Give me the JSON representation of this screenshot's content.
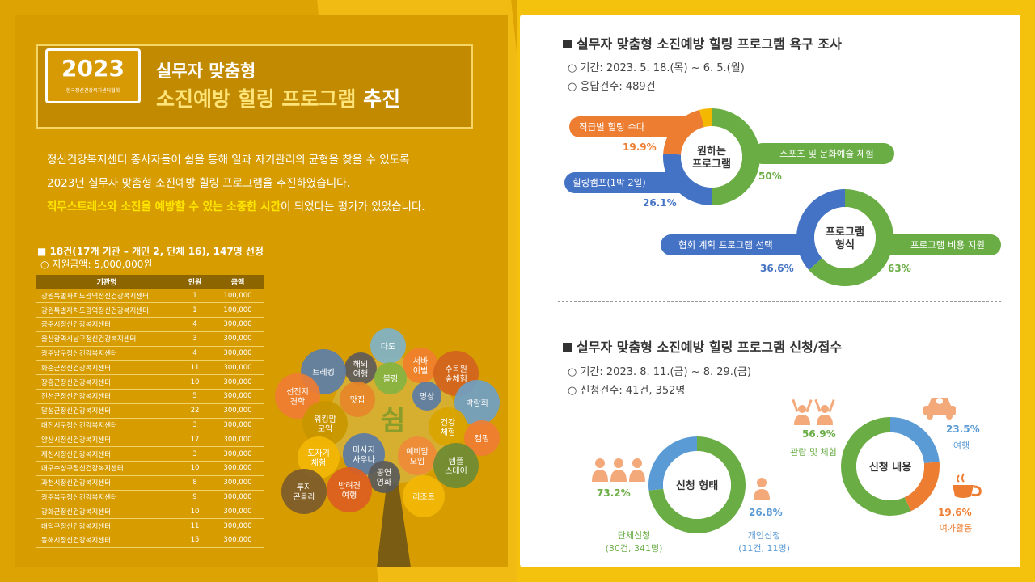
{
  "left": {
    "year": "2023",
    "org": "한국정신건강복지센터협회",
    "title_line1": "실무자 맞춤형",
    "title_line2_a": "소진예방 힐링 프로그램 ",
    "title_line2_b": "추진",
    "intro_line1": "정신건강복지센터 종사자들이 쉼을 통해 일과 자기관리의 균형을 찾을 수 있도록",
    "intro_line2": "2023년 실무자 맞춤형 소진예방 힐링 프로그램을 추진하였습니다.",
    "intro_line3_hl": "직무스트레스와 소진을 예방할 수 있는 소중한 시간",
    "intro_line3_rest": "이 되었다는 평가가 있었습니다.",
    "summary_title": "■ 18건(17개 기관 – 개인 2, 단체 16), 147명 선정",
    "summary_sub": "○ 지원금액: 5,000,000원",
    "table": {
      "headers": [
        "기관명",
        "인원",
        "금액"
      ],
      "rows": [
        [
          "강원특별자치도광역정신건강복지센터",
          "1",
          "100,000"
        ],
        [
          "강원특별자치도광역정신건강복지센터",
          "1",
          "100,000"
        ],
        [
          "공주시정신건강복지센터",
          "4",
          "300,000"
        ],
        [
          "울산광역시남구정신건강복지센터",
          "3",
          "300,000"
        ],
        [
          "광주남구정신건강복지센터",
          "4",
          "300,000"
        ],
        [
          "화순군정신건강복지센터",
          "11",
          "300,000"
        ],
        [
          "장흥군정신건강복지센터",
          "10",
          "300,000"
        ],
        [
          "진천군정신건강복지센터",
          "5",
          "300,000"
        ],
        [
          "달성군정신건강복지센터",
          "22",
          "300,000"
        ],
        [
          "대전서구정신건강복지센터",
          "3",
          "300,000"
        ],
        [
          "양산시정신건강복지센터",
          "17",
          "300,000"
        ],
        [
          "제천시정신건강복지센터",
          "3",
          "300,000"
        ],
        [
          "대구수성구정신건강복지센터",
          "10",
          "300,000"
        ],
        [
          "과천시정신건강복지센터",
          "8",
          "300,000"
        ],
        [
          "광주북구정신건강복지센터",
          "9",
          "300,000"
        ],
        [
          "강화군정신건강복지센터",
          "10",
          "300,000"
        ],
        [
          "대덕구정신건강복지센터",
          "11",
          "300,000"
        ],
        [
          "동해시정신건강복지센터",
          "15",
          "300,000"
        ]
      ]
    },
    "tree": {
      "center": "쉼",
      "circles": [
        {
          "text": "다도",
          "color": "#7fb3c9"
        },
        {
          "text": "해외\n여행",
          "color": "#5e5a5a"
        },
        {
          "text": "서바\n이벌",
          "color": "#f07f2c"
        },
        {
          "text": "수목원\n숲체험",
          "color": "#d2631d"
        },
        {
          "text": "트레킹",
          "color": "#5c7fa8"
        },
        {
          "text": "볼링",
          "color": "#86b342"
        },
        {
          "text": "명상",
          "color": "#5b7ca6"
        },
        {
          "text": "박람회",
          "color": "#6f9fc4"
        },
        {
          "text": "선진지\n견학",
          "color": "#ef7d33"
        },
        {
          "text": "맛집",
          "color": "#e6862a"
        },
        {
          "text": "워킹맘\n모임",
          "color": "#c99600"
        },
        {
          "text": "건강\n체험",
          "color": "#d9a400"
        },
        {
          "text": "캠핑",
          "color": "#ef7d33"
        },
        {
          "text": "마사지\n사우나",
          "color": "#5a7aa6"
        },
        {
          "text": "예비맘\n모임",
          "color": "#ef8a3a"
        },
        {
          "text": "템플\n스테이",
          "color": "#6d8b35"
        },
        {
          "text": "도자기\n체험",
          "color": "#f2b705"
        },
        {
          "text": "공연\n영화",
          "color": "#5a5a5a"
        },
        {
          "text": "반려견\n여행",
          "color": "#dc5e1f"
        },
        {
          "text": "루지\n곤돌라",
          "color": "#7c5b2a"
        },
        {
          "text": "리조트",
          "color": "#f2b705"
        }
      ]
    }
  },
  "right": {
    "sec1_title": "실무자 맞춤형 소진예방 힐링 프로그램 욕구 조사",
    "sec1_period": "○ 기간: 2023. 5. 18.(목) ~ 6. 5.(월)",
    "sec1_count": "○ 응답건수: 489건",
    "donut1": {
      "center": "원하는\n프로그램",
      "slices": [
        {
          "label": "스포츠 및 문화예술 체험",
          "pct": "50%",
          "value": 50,
          "color": "#6aad45"
        },
        {
          "label": "힐링캠프(1박 2일)",
          "pct": "26.1%",
          "value": 26.1,
          "color": "#4472c4"
        },
        {
          "label": "직급별 힐링 수다",
          "pct": "19.9%",
          "value": 19.9,
          "color": "#ed7d31"
        },
        {
          "label": "",
          "pct": "",
          "value": 4.0,
          "color": "#f5b800"
        }
      ]
    },
    "donut2": {
      "center": "프로그램\n형식",
      "slices": [
        {
          "label": "프로그램 비용 지원",
          "pct": "63%",
          "value": 63.4,
          "color": "#6aad45"
        },
        {
          "label": "협회 계획 프로그램 선택",
          "pct": "36.6%",
          "value": 36.6,
          "color": "#4472c4"
        }
      ]
    },
    "sec2_title": "실무자 맞춤형 소진예방 힐링 프로그램 신청/접수",
    "sec2_period": "○ 기간: 2023. 8. 11.(금) ~ 8. 29.(금)",
    "sec2_count": "○ 신청건수: 41건, 352명",
    "donut3": {
      "center": "신청 형태",
      "slices": [
        {
          "label": "단체신청",
          "sub": "(30건, 341명)",
          "pct": "73.2%",
          "value": 73.2,
          "color": "#6aad45"
        },
        {
          "label": "개인신청",
          "sub": "(11건, 11명)",
          "pct": "26.8%",
          "value": 26.8,
          "color": "#5b9bd5"
        }
      ]
    },
    "donut4": {
      "center": "신청 내용",
      "slices": [
        {
          "label": "여행",
          "pct": "23.5%",
          "value": 23.5,
          "color": "#5b9bd5"
        },
        {
          "label": "여가활동",
          "pct": "19.6%",
          "value": 19.6,
          "color": "#ed7d31"
        },
        {
          "label": "관람 및 체험",
          "pct": "56.9%",
          "value": 56.9,
          "color": "#6aad45"
        }
      ]
    }
  }
}
